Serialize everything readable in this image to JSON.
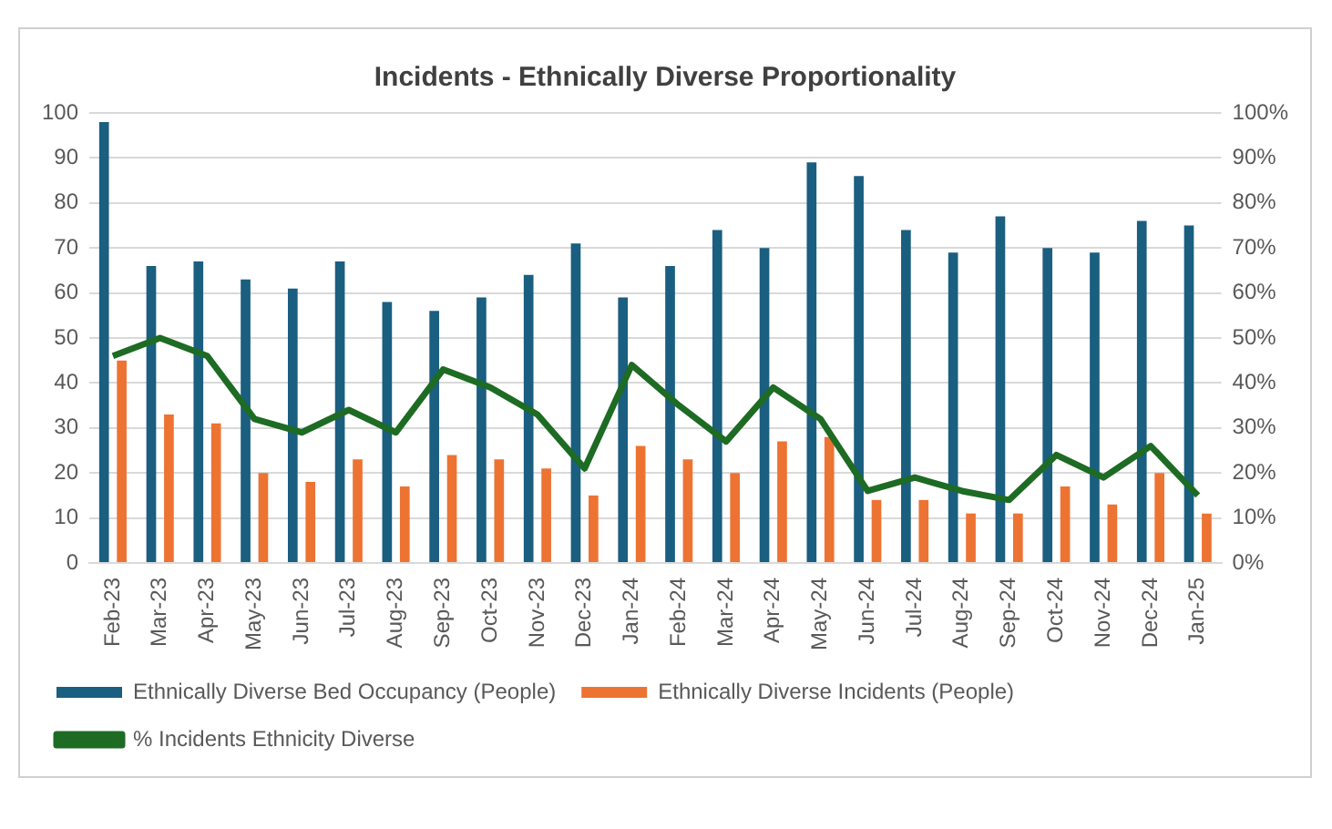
{
  "chart_data": {
    "type": "bar",
    "title": "Incidents - Ethnically Diverse Proportionality",
    "categories": [
      "Feb-23",
      "Mar-23",
      "Apr-23",
      "May-23",
      "Jun-23",
      "Jul-23",
      "Aug-23",
      "Sep-23",
      "Oct-23",
      "Nov-23",
      "Dec-23",
      "Jan-24",
      "Feb-24",
      "Mar-24",
      "Apr-24",
      "May-24",
      "Jun-24",
      "Jul-24",
      "Aug-24",
      "Sep-24",
      "Oct-24",
      "Nov-24",
      "Dec-24",
      "Jan-25"
    ],
    "series": [
      {
        "name": "Ethnically Diverse Bed Occupancy (People)",
        "color": "#1a5e80",
        "values": [
          98,
          66,
          67,
          63,
          61,
          67,
          58,
          56,
          59,
          64,
          71,
          59,
          66,
          74,
          70,
          89,
          86,
          74,
          69,
          77,
          70,
          69,
          76,
          75
        ]
      },
      {
        "name": "Ethnically Diverse Incidents (People)",
        "color": "#ed7332",
        "values": [
          45,
          33,
          31,
          20,
          18,
          23,
          17,
          24,
          23,
          21,
          15,
          26,
          23,
          20,
          27,
          28,
          14,
          14,
          11,
          11,
          17,
          13,
          20,
          11
        ]
      },
      {
        "name": "% Incidents Ethnicity Diverse",
        "type": "line",
        "axis": "y2",
        "color": "#1e6b24",
        "values": [
          46,
          50,
          46,
          32,
          29,
          34,
          29,
          43,
          39,
          33,
          21,
          44,
          35,
          27,
          39,
          32,
          16,
          19,
          16,
          14,
          24,
          19,
          26,
          15
        ]
      }
    ],
    "ylim": [
      0,
      100
    ],
    "yticks": [
      0,
      10,
      20,
      30,
      40,
      50,
      60,
      70,
      80,
      90,
      100
    ],
    "y2lim": [
      0,
      100
    ],
    "y2ticks": [
      {
        "value": 0,
        "label": "0%"
      },
      {
        "value": 10,
        "label": "10%"
      },
      {
        "value": 20,
        "label": "20%"
      },
      {
        "value": 30,
        "label": "30%"
      },
      {
        "value": 40,
        "label": "40%"
      },
      {
        "value": 50,
        "label": "50%"
      },
      {
        "value": 60,
        "label": "60%"
      },
      {
        "value": 70,
        "label": "70%"
      },
      {
        "value": 80,
        "label": "80%"
      },
      {
        "value": 90,
        "label": "90%"
      },
      {
        "value": 100,
        "label": "100%"
      }
    ],
    "grid": "y",
    "legend": "bottom",
    "marker": "none",
    "line_style": "solid"
  }
}
